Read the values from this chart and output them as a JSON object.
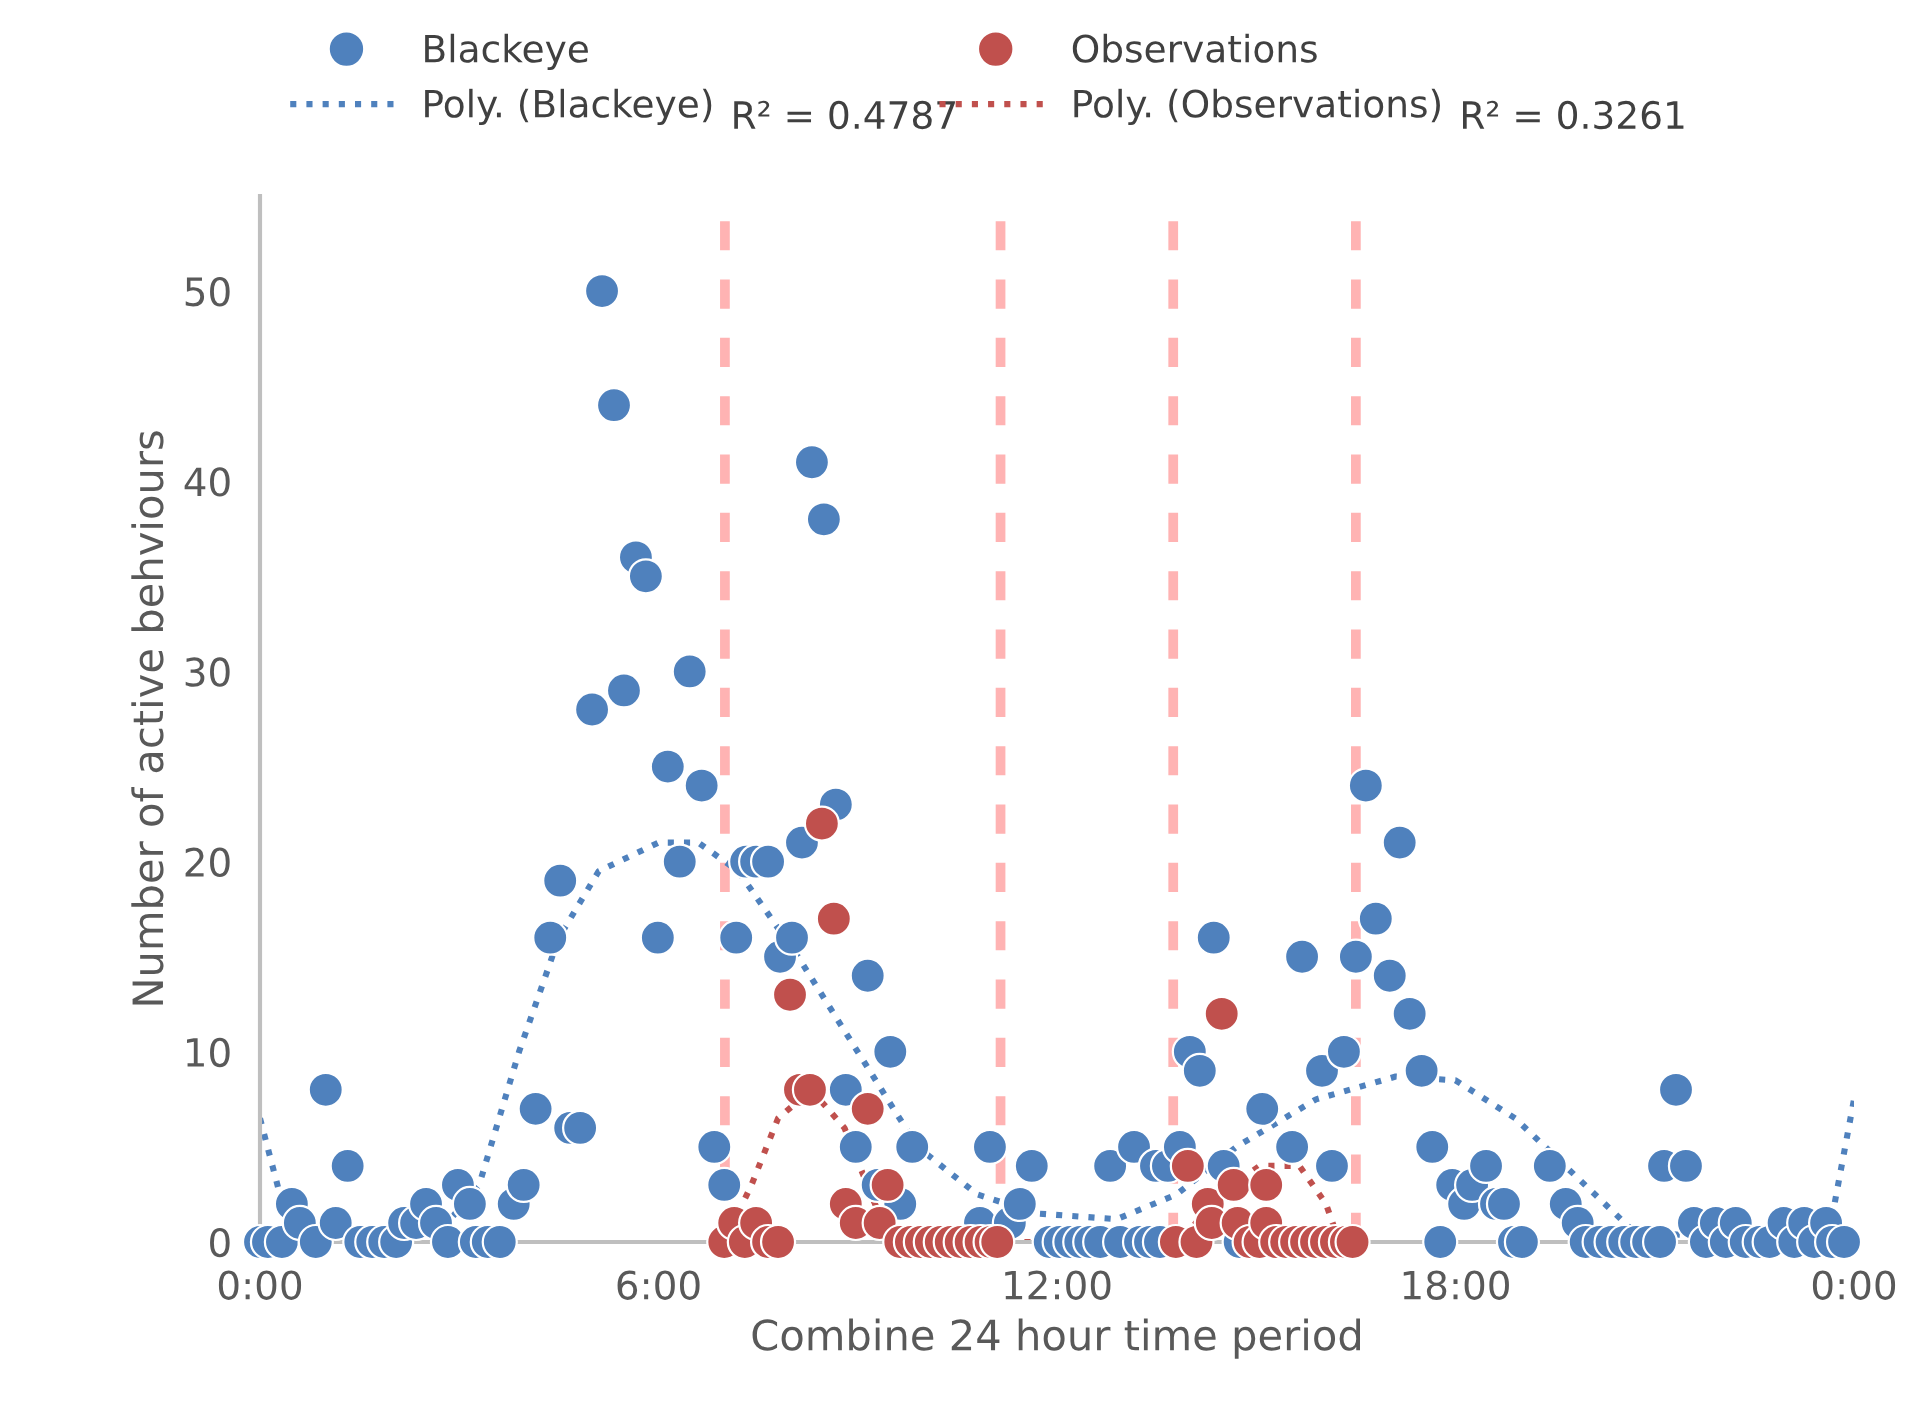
{
  "chart_data": {
    "type": "scatter",
    "xlabel": "Combine 24 hour time period",
    "ylabel": "Number of active behviours",
    "xlim": [
      0,
      24
    ],
    "ylim": [
      0,
      55
    ],
    "xticks": [
      {
        "value": 0,
        "label": "0:00"
      },
      {
        "value": 6,
        "label": "6:00"
      },
      {
        "value": 12,
        "label": "12:00"
      },
      {
        "value": 18,
        "label": "18:00"
      },
      {
        "value": 24,
        "label": "0:00"
      }
    ],
    "yticks": [
      0,
      10,
      20,
      30,
      40,
      50
    ],
    "grid": false,
    "legend": "top",
    "annotations": [
      "R² = 0.4787",
      "R² = 0.3261"
    ],
    "ref_lines": [
      {
        "axis": "x",
        "value": 7,
        "color": "#ffb3b3",
        "line_style": "dashed"
      },
      {
        "axis": "x",
        "value": 11.15,
        "color": "#ffb3b3",
        "line_style": "dashed"
      },
      {
        "axis": "x",
        "value": 13.75,
        "color": "#ffb3b3",
        "line_style": "dashed"
      },
      {
        "axis": "x",
        "value": 16.5,
        "color": "#ffb3b3",
        "line_style": "dashed"
      }
    ],
    "series": [
      {
        "name": "Blackeye",
        "marker": "circle",
        "color": "#4f81bd",
        "x": [
          0,
          0.12,
          0.33,
          0.48,
          0.6,
          0.84,
          0.99,
          1.14,
          1.32,
          1.51,
          1.69,
          1.87,
          2.05,
          2.17,
          2.35,
          2.5,
          2.65,
          2.83,
          2.98,
          3.16,
          3.25,
          3.43,
          3.61,
          3.82,
          3.97,
          4.15,
          4.37,
          4.52,
          4.67,
          4.82,
          5.0,
          5.15,
          5.33,
          5.48,
          5.66,
          5.81,
          5.99,
          6.14,
          6.32,
          6.47,
          6.65,
          6.84,
          6.99,
          7.17,
          7.32,
          7.47,
          7.65,
          7.83,
          8.01,
          8.16,
          8.31,
          8.49,
          8.67,
          8.82,
          8.97,
          9.15,
          9.3,
          9.49,
          9.64,
          9.82,
          10.84,
          10.99,
          11.29,
          11.44,
          11.62,
          11.89,
          12.04,
          12.2,
          12.35,
          12.5,
          12.65,
          12.8,
          12.95,
          13.16,
          13.25,
          13.4,
          13.49,
          13.55,
          13.67,
          13.85,
          14.0,
          14.15,
          14.36,
          14.51,
          14.75,
          15.09,
          15.54,
          15.69,
          15.99,
          16.14,
          16.32,
          16.5,
          16.65,
          16.8,
          17.01,
          17.16,
          17.31,
          17.49,
          17.65,
          17.77,
          17.95,
          18.13,
          18.25,
          18.46,
          18.61,
          18.73,
          18.88,
          19.0,
          19.42,
          19.66,
          19.84,
          19.96,
          20.17,
          20.35,
          20.54,
          20.72,
          20.9,
          21.08,
          21.14,
          21.32,
          21.47,
          21.59,
          21.77,
          21.92,
          22.07,
          22.22,
          22.37,
          22.58,
          22.73,
          22.94,
          23.1,
          23.25,
          23.4,
          23.58,
          23.67,
          23.85
        ],
        "values": [
          0,
          0,
          0,
          2,
          1,
          0,
          8,
          1,
          4,
          0,
          0,
          0,
          0,
          1,
          1,
          2,
          1,
          0,
          3,
          2,
          0,
          0,
          0,
          2,
          3,
          7,
          16,
          19,
          6,
          6,
          28,
          50,
          44,
          29,
          36,
          35,
          16,
          25,
          20,
          30,
          24,
          5,
          3,
          16,
          20,
          20,
          20,
          15,
          16,
          21,
          41,
          38,
          23,
          8,
          5,
          14,
          3,
          10,
          2,
          5,
          1,
          5,
          1,
          2,
          4,
          0,
          0,
          0,
          0,
          0,
          0,
          4,
          0,
          5,
          0,
          0,
          4,
          0,
          4,
          5,
          10,
          9,
          16,
          4,
          0,
          7,
          5,
          15,
          9,
          4,
          10,
          15,
          24,
          17,
          14,
          21,
          12,
          9,
          5,
          0,
          3,
          2,
          3,
          4,
          2,
          2,
          0,
          0,
          4,
          2,
          1,
          0,
          0,
          0,
          0,
          0,
          0,
          0,
          4,
          8,
          4,
          1,
          0,
          1,
          0,
          1,
          0,
          0,
          0,
          1,
          0,
          1,
          0,
          1,
          0,
          0
        ]
      },
      {
        "name": "Observations",
        "marker": "circle",
        "color": "#c0504d",
        "x": [
          6.99,
          7.14,
          7.3,
          7.47,
          7.65,
          7.8,
          7.98,
          8.13,
          8.28,
          8.46,
          8.64,
          8.82,
          8.97,
          9.15,
          9.33,
          9.45,
          9.64,
          9.8,
          9.95,
          10.1,
          10.25,
          10.4,
          10.55,
          10.7,
          10.85,
          11.0,
          11.1,
          13.79,
          13.97,
          14.1,
          14.27,
          14.33,
          14.48,
          14.66,
          14.72,
          14.9,
          15.05,
          15.15,
          15.15,
          15.3,
          15.45,
          15.6,
          15.75,
          15.9,
          16.05,
          16.2,
          16.35,
          16.45
        ],
        "values": [
          0,
          1,
          0,
          1,
          0,
          0,
          13,
          8,
          8,
          22,
          17,
          2,
          1,
          7,
          1,
          3,
          0,
          0,
          0,
          0,
          0,
          0,
          0,
          0,
          0,
          0,
          0,
          0,
          4,
          0,
          2,
          1,
          12,
          3,
          1,
          0,
          0,
          3,
          1,
          0,
          0,
          0,
          0,
          0,
          0,
          0,
          0,
          0
        ]
      },
      {
        "name": "Poly. (Blackeye)",
        "type": "line",
        "line_style": "dotted",
        "color": "#4f81bd",
        "x": [
          0,
          0.3,
          0.6,
          2.7,
          3.3,
          3.9,
          4.5,
          5.1,
          6.0,
          6.6,
          7.2,
          8.1,
          9.0,
          9.9,
          10.8,
          11.7,
          12.9,
          13.8,
          14.7,
          15.9,
          17.1,
          18.0,
          18.9,
          19.8,
          20.7,
          23.6,
          24
        ],
        "values": [
          6.5,
          2.5,
          0,
          0.5,
          3,
          10,
          16,
          19.5,
          21,
          21,
          19.5,
          15,
          10,
          5,
          2.5,
          1.5,
          1.2,
          2.5,
          5,
          7.5,
          8.7,
          8.5,
          6.5,
          3.5,
          0.5,
          0,
          7.5
        ]
      },
      {
        "name": "Poly. (Observations)",
        "type": "line",
        "line_style": "dotted",
        "color": "#c0504d",
        "x": [
          6.99,
          7.4,
          7.8,
          8.3,
          8.8,
          9.2,
          9.5,
          13.85,
          14.45,
          15.05,
          15.65,
          16.05,
          16.25
        ],
        "values": [
          0,
          3,
          6.5,
          8,
          6,
          2.5,
          0,
          0,
          2.5,
          4,
          4,
          2,
          0
        ]
      }
    ]
  }
}
